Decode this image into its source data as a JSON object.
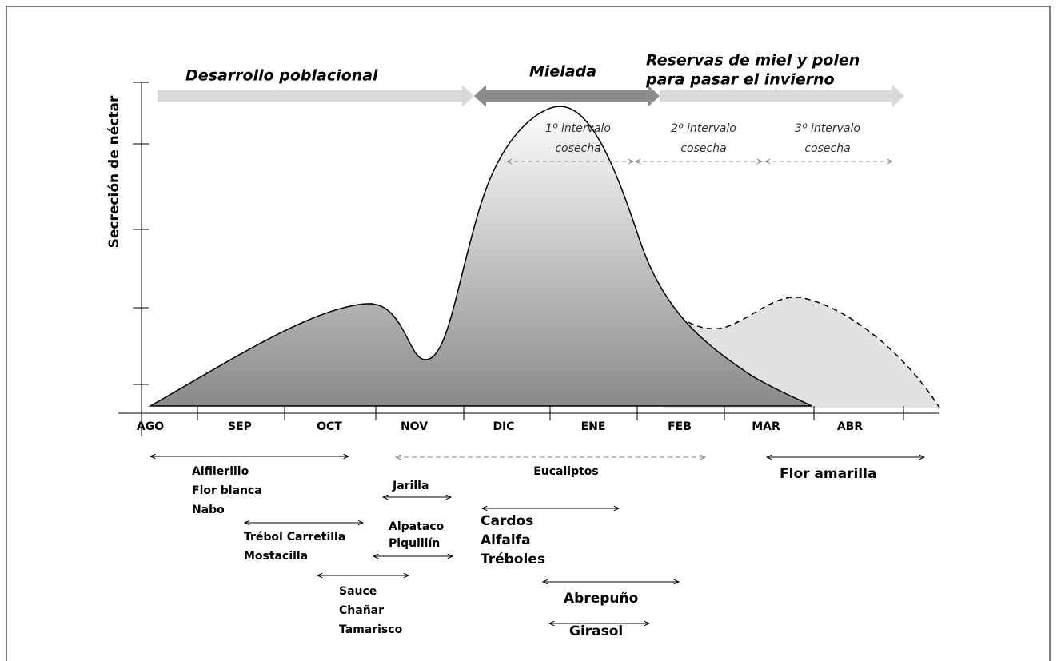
{
  "y_axis_label": "Secreción de néctar",
  "phases": [
    {
      "lines": [
        "Desarrollo poblacional"
      ]
    },
    {
      "lines": [
        "Mielada"
      ]
    },
    {
      "lines": [
        "Reservas de miel y polen",
        "para pasar el invierno"
      ]
    }
  ],
  "intervals": [
    {
      "lines": [
        "1º intervalo",
        "cosecha"
      ]
    },
    {
      "lines": [
        "2º intervalo",
        "cosecha"
      ]
    },
    {
      "lines": [
        "3º intervalo",
        "cosecha"
      ]
    }
  ],
  "months": [
    "AGO",
    "SEP",
    "OCT",
    "NOV",
    "DIC",
    "ENE",
    "FEB",
    "MAR",
    "ABR"
  ],
  "plants": [
    {
      "lines": [
        "Alfilerillo",
        "Flor blanca",
        "Nabo"
      ]
    },
    {
      "lines": [
        "Eucaliptos"
      ]
    },
    {
      "lines": [
        "Flor amarilla"
      ]
    },
    {
      "lines": [
        "Jarilla"
      ]
    },
    {
      "lines": [
        "Trébol Carretilla",
        "Mostacilla"
      ]
    },
    {
      "lines": [
        "Alpataco",
        "Piquillín"
      ]
    },
    {
      "lines": [
        "Cardos",
        "Alfalfa",
        "Tréboles"
      ]
    },
    {
      "lines": [
        "Sauce",
        "Chañar",
        "Tamarisco"
      ]
    },
    {
      "lines": [
        "Abrepuño"
      ]
    },
    {
      "lines": [
        "Girasol"
      ]
    }
  ]
}
